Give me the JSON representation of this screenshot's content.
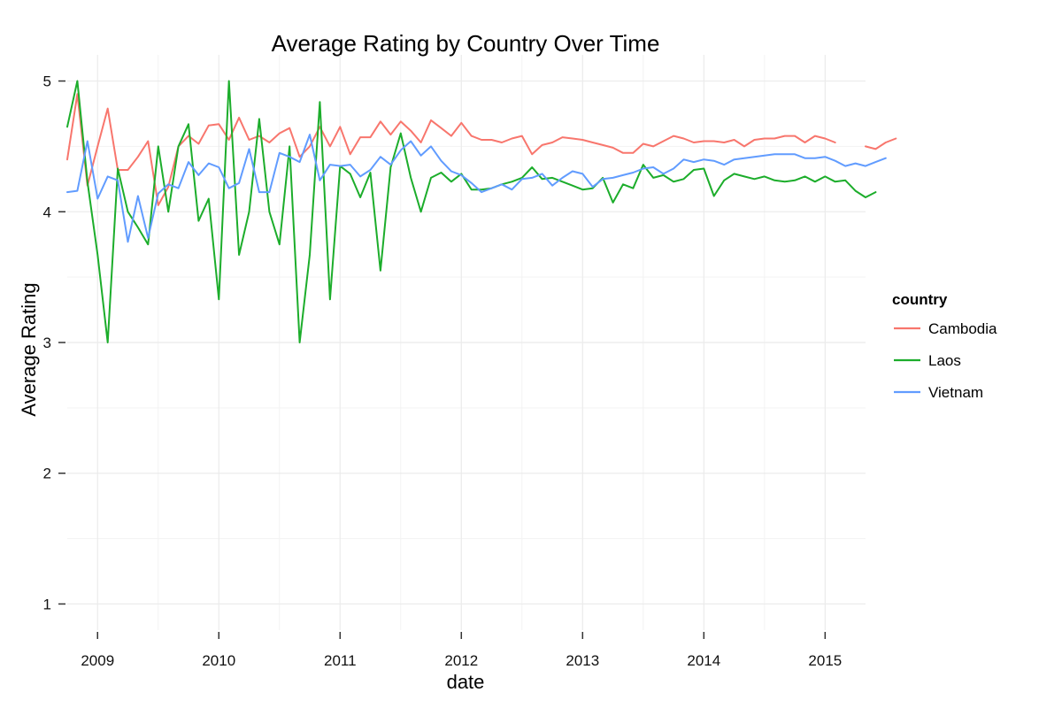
{
  "chart_data": {
    "type": "line",
    "title": "Average Rating by Country Over Time",
    "xlabel": "date",
    "ylabel": "Average Rating",
    "x_start": "2008-10",
    "xlim": [
      "2008-10",
      "2015-05"
    ],
    "ylim": [
      0.8,
      5.2
    ],
    "x_ticks": [
      "2009",
      "2010",
      "2011",
      "2012",
      "2013",
      "2014",
      "2015"
    ],
    "y_ticks": [
      "1",
      "2",
      "3",
      "4",
      "5"
    ],
    "grid": true,
    "legend": {
      "title": "country",
      "position": "right"
    },
    "series": [
      {
        "name": "Cambodia",
        "color": "#F8766D",
        "values": [
          4.4,
          4.9,
          4.2,
          4.5,
          4.79,
          4.32,
          4.32,
          4.42,
          4.54,
          4.05,
          4.19,
          4.5,
          4.58,
          4.52,
          4.66,
          4.67,
          4.55,
          4.72,
          4.55,
          4.58,
          4.53,
          4.6,
          4.64,
          4.42,
          4.5,
          4.65,
          4.5,
          4.65,
          4.44,
          4.57,
          4.57,
          4.69,
          4.59,
          4.69,
          4.62,
          4.53,
          4.7,
          4.64,
          4.58,
          4.68,
          4.58,
          4.55,
          4.55,
          4.53,
          4.56,
          4.58,
          4.44,
          4.51,
          4.53,
          4.57,
          4.56,
          4.55,
          4.53,
          4.51,
          4.49,
          4.45,
          4.45,
          4.52,
          4.5,
          4.54,
          4.58,
          4.56,
          4.53,
          4.54,
          4.54,
          4.53,
          4.55,
          4.5,
          4.55,
          4.56,
          4.56,
          4.58,
          4.58,
          4.53,
          4.58,
          4.56,
          4.53,
          null,
          null,
          4.5,
          4.48,
          4.53,
          4.56
        ]
      },
      {
        "name": "Laos",
        "color": "#1CAD2B",
        "values": [
          4.65,
          5.0,
          4.23,
          3.67,
          3.0,
          4.33,
          4.0,
          3.88,
          3.75,
          4.5,
          4.0,
          4.5,
          4.67,
          3.93,
          4.1,
          3.33,
          5.0,
          3.67,
          4.0,
          4.71,
          4.0,
          3.75,
          4.5,
          3.0,
          3.67,
          4.84,
          3.33,
          4.35,
          4.29,
          4.11,
          4.3,
          3.55,
          4.34,
          4.6,
          4.26,
          4.0,
          4.26,
          4.3,
          4.23,
          4.29,
          4.17,
          4.17,
          4.18,
          4.21,
          4.23,
          4.26,
          4.34,
          4.25,
          4.26,
          4.23,
          4.2,
          4.17,
          4.18,
          4.26,
          4.07,
          4.21,
          4.18,
          4.36,
          4.26,
          4.28,
          4.23,
          4.25,
          4.32,
          4.33,
          4.12,
          4.24,
          4.29,
          4.27,
          4.25,
          4.27,
          4.24,
          4.23,
          4.24,
          4.27,
          4.23,
          4.27,
          4.23,
          4.24,
          4.16,
          4.11,
          4.15
        ]
      },
      {
        "name": "Vietnam",
        "color": "#619CFF",
        "values": [
          4.15,
          4.16,
          4.54,
          4.1,
          4.27,
          4.24,
          3.77,
          4.12,
          3.8,
          4.14,
          4.21,
          4.18,
          4.38,
          4.28,
          4.37,
          4.34,
          4.18,
          4.22,
          4.48,
          4.15,
          4.15,
          4.45,
          4.42,
          4.38,
          4.59,
          4.24,
          4.36,
          4.35,
          4.36,
          4.27,
          4.32,
          4.42,
          4.36,
          4.47,
          4.54,
          4.43,
          4.5,
          4.39,
          4.31,
          4.28,
          4.22,
          4.15,
          4.18,
          4.21,
          4.17,
          4.25,
          4.26,
          4.29,
          4.2,
          4.26,
          4.31,
          4.29,
          4.19,
          4.25,
          4.26,
          4.28,
          4.3,
          4.33,
          4.34,
          4.29,
          4.33,
          4.4,
          4.38,
          4.4,
          4.39,
          4.36,
          4.4,
          4.41,
          4.42,
          4.43,
          4.44,
          4.44,
          4.44,
          4.41,
          4.41,
          4.42,
          4.39,
          4.35,
          4.37,
          4.35,
          4.38,
          4.41
        ]
      }
    ]
  }
}
